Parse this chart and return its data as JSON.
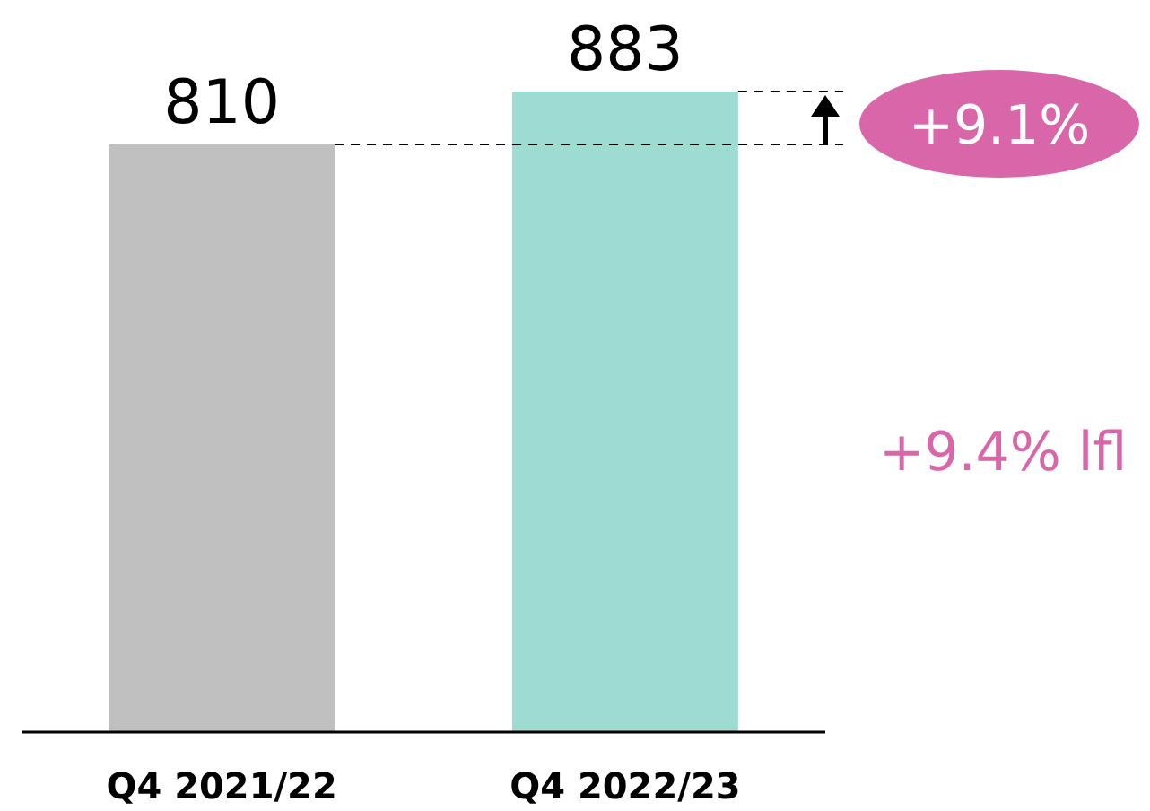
{
  "chart_data": {
    "type": "bar",
    "categories": [
      "Q4 2021/22",
      "Q4 2022/23"
    ],
    "values": [
      810,
      883
    ],
    "colors": [
      "#c0c0c0",
      "#9edcd3"
    ],
    "data_labels": true,
    "tick_labels": "x",
    "ref_lines": [
      {
        "axis": "y",
        "value": 810,
        "color": "#000000",
        "line_style": "dashed"
      },
      {
        "axis": "y",
        "value": 883,
        "color": "#000000",
        "line_style": "dashed"
      }
    ],
    "annotations": [
      "+9.1%",
      "+9.4% lfl"
    ]
  }
}
